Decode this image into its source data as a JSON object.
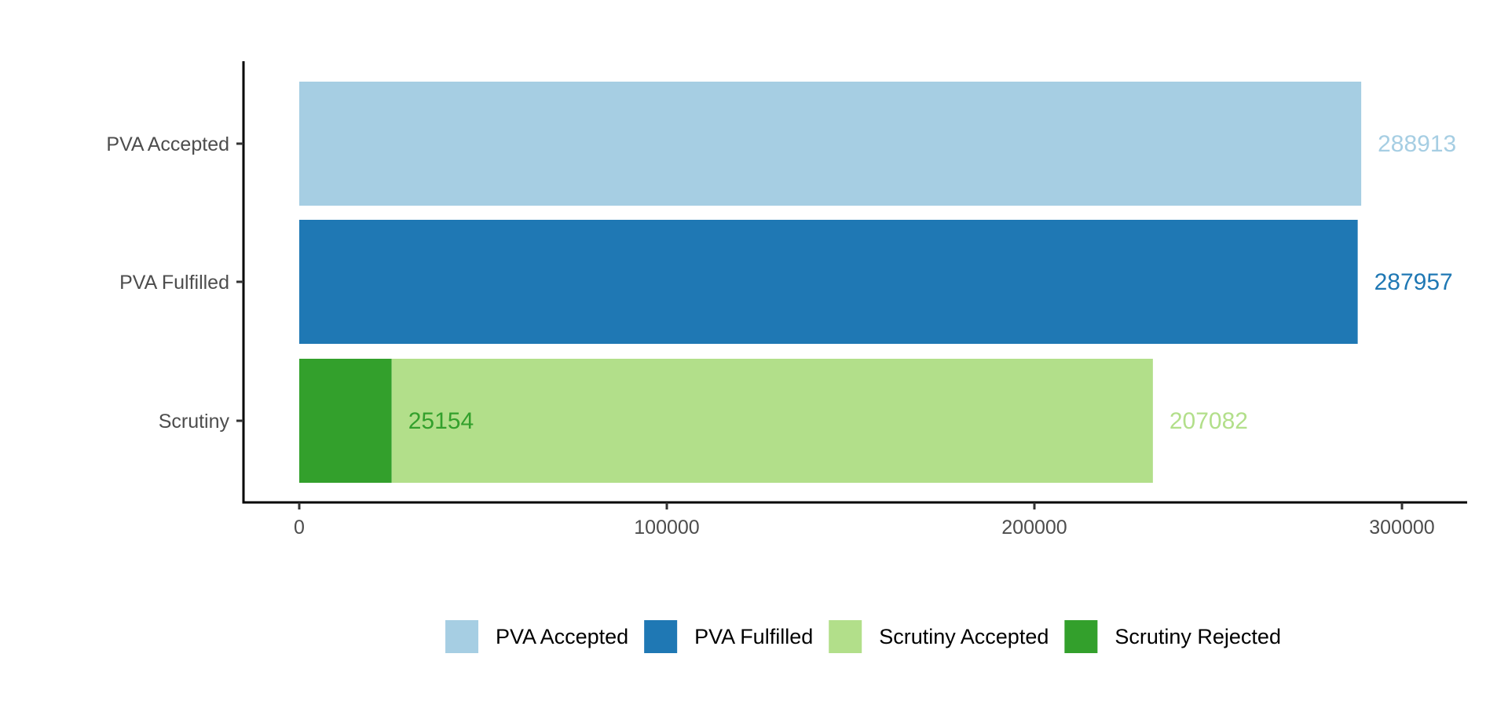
{
  "chart_data": {
    "type": "bar",
    "orientation": "horizontal",
    "stacked": true,
    "categories": [
      "PVA Accepted",
      "PVA Fulfilled",
      "Scrutiny"
    ],
    "series": [
      {
        "name": "PVA Accepted",
        "color": "#a6cee3",
        "values": [
          288913,
          0,
          0
        ]
      },
      {
        "name": "PVA Fulfilled",
        "color": "#1f78b4",
        "values": [
          0,
          287957,
          0
        ]
      },
      {
        "name": "Scrutiny Rejected",
        "color": "#33a02c",
        "values": [
          0,
          0,
          25154
        ]
      },
      {
        "name": "Scrutiny Accepted",
        "color": "#b2df8a",
        "values": [
          0,
          0,
          207082
        ]
      }
    ],
    "data_labels": [
      {
        "category": "PVA Accepted",
        "series": "PVA Accepted",
        "text": "288913",
        "color": "#a6cee3"
      },
      {
        "category": "PVA Fulfilled",
        "series": "PVA Fulfilled",
        "text": "287957",
        "color": "#1f78b4"
      },
      {
        "category": "Scrutiny",
        "series": "Scrutiny Rejected",
        "text": "25154",
        "color": "#33a02c"
      },
      {
        "category": "Scrutiny",
        "series": "Scrutiny Accepted",
        "text": "207082",
        "color": "#b2df8a"
      }
    ],
    "x_ticks": [
      0,
      100000,
      200000,
      300000
    ],
    "x_tick_labels": [
      "0",
      "100000",
      "200000",
      "300000"
    ],
    "xlim": [
      -15000,
      318000
    ],
    "legend": {
      "position": "bottom",
      "entries": [
        {
          "label": "PVA Accepted",
          "color": "#a6cee3"
        },
        {
          "label": "PVA Fulfilled",
          "color": "#1f78b4"
        },
        {
          "label": "Scrutiny Accepted",
          "color": "#b2df8a"
        },
        {
          "label": "Scrutiny Rejected",
          "color": "#33a02c"
        }
      ]
    },
    "grid": false,
    "title": "",
    "xlabel": "",
    "ylabel": ""
  }
}
